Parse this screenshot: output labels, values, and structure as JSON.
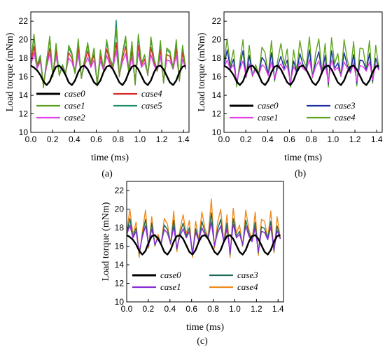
{
  "chart_data": [
    {
      "type": "line",
      "panel_label": "(a)",
      "xlabel": "time (ms)",
      "ylabel": "Load torque (mNm)",
      "xlim": [
        0.0,
        1.45
      ],
      "ylim": [
        10,
        23
      ],
      "xticks": [
        "0.0",
        "0.2",
        "0.4",
        "0.6",
        "0.8",
        "1.0",
        "1.2",
        "1.4"
      ],
      "yticks": [
        "10",
        "12",
        "14",
        "16",
        "18",
        "20",
        "22"
      ],
      "legend": {
        "columns": 2,
        "placement": "bottom"
      },
      "series": [
        {
          "name": "case0",
          "color": "#000000",
          "values": [
            17.2,
            17.0,
            16.7,
            16.2,
            15.5,
            15.1,
            15.5,
            16.4,
            17.1,
            17.2,
            16.8,
            16.2,
            15.4,
            15.1,
            15.6,
            16.5,
            17.1,
            17.2,
            16.8,
            16.1,
            15.4,
            15.1,
            15.6,
            16.5,
            17.1,
            17.2,
            16.8,
            16.1,
            15.4,
            15.1,
            15.6,
            16.5,
            17.1,
            17.2,
            16.8,
            16.1,
            15.4,
            15.1,
            15.6,
            16.5,
            17.1,
            17.2,
            16.8,
            16.1,
            15.4,
            15.1,
            15.6,
            16.5,
            17.1,
            17.2
          ]
        },
        {
          "name": "case1",
          "color": "#59a11b",
          "values": [
            17.5,
            20.6,
            17.2,
            18.2,
            14.8,
            17.6,
            20.4,
            16.0,
            19.6,
            16.1,
            17.2,
            16.3,
            19.4,
            18.6,
            16.3,
            20.1,
            15.8,
            17.8,
            19.7,
            17.4,
            19.1,
            15.0,
            18.9,
            16.8,
            20.0,
            18.0,
            17.1,
            21.2,
            16.0,
            18.6,
            20.4,
            16.5,
            19.8,
            15.1,
            20.6,
            17.4,
            18.4,
            16.1,
            20.3,
            17.8,
            16.6,
            19.9,
            15.3,
            19.1,
            18.8,
            16.9,
            20.0,
            15.5,
            19.4,
            16.8
          ]
        },
        {
          "name": "case2",
          "color": "#e040e8",
          "values": [
            17.2,
            18.6,
            16.9,
            17.6,
            15.3,
            17.1,
            18.5,
            16.2,
            18.2,
            16.3,
            17.0,
            16.4,
            18.0,
            17.6,
            16.4,
            18.4,
            16.0,
            17.2,
            18.1,
            17.0,
            17.8,
            15.4,
            17.7,
            16.7,
            18.3,
            17.3,
            16.9,
            18.8,
            16.2,
            17.6,
            18.5,
            16.5,
            18.1,
            15.5,
            18.6,
            17.0,
            17.5,
            16.3,
            18.4,
            17.2,
            16.6,
            18.2,
            15.6,
            17.8,
            17.7,
            16.8,
            18.3,
            15.8,
            17.9,
            16.8
          ]
        },
        {
          "name": "case4",
          "color": "#d52a2a",
          "values": [
            17.3,
            19.3,
            17.0,
            17.9,
            15.1,
            17.3,
            19.1,
            16.1,
            18.8,
            16.2,
            17.1,
            16.4,
            18.6,
            18.0,
            16.4,
            19.1,
            15.9,
            17.5,
            18.8,
            17.2,
            18.4,
            15.2,
            18.2,
            16.8,
            19.0,
            17.6,
            17.0,
            19.7,
            16.1,
            18.0,
            19.3,
            16.5,
            18.8,
            15.3,
            19.4,
            17.2,
            17.9,
            16.2,
            19.2,
            17.5,
            16.6,
            18.9,
            15.5,
            18.4,
            18.2,
            16.9,
            19.0,
            15.7,
            18.6,
            16.8
          ]
        },
        {
          "name": "case5",
          "color": "#1f8f6e",
          "values": [
            17.6,
            20.2,
            17.3,
            18.3,
            15.0,
            17.8,
            20.0,
            16.1,
            19.4,
            16.2,
            17.3,
            16.4,
            19.1,
            18.4,
            16.4,
            19.8,
            15.9,
            17.9,
            19.4,
            17.5,
            18.9,
            15.2,
            18.7,
            16.9,
            19.7,
            18.0,
            17.2,
            22.1,
            16.1,
            18.5,
            20.1,
            16.6,
            19.6,
            15.2,
            20.3,
            17.5,
            18.3,
            16.2,
            20.0,
            17.9,
            16.7,
            19.6,
            15.4,
            18.9,
            18.6,
            17.0,
            19.7,
            15.6,
            19.2,
            16.9
          ]
        }
      ]
    },
    {
      "type": "line",
      "panel_label": "(b)",
      "xlabel": "time (ms)",
      "ylabel": "Load torque (mNm)",
      "xlim": [
        0.0,
        1.45
      ],
      "ylim": [
        10,
        23
      ],
      "xticks": [
        "0.0",
        "0.2",
        "0.4",
        "0.6",
        "0.8",
        "1.0",
        "1.2",
        "1.4"
      ],
      "yticks": [
        "10",
        "12",
        "14",
        "16",
        "18",
        "20",
        "22"
      ],
      "legend": {
        "columns": 2,
        "placement": "bottom"
      },
      "series": [
        {
          "name": "case0",
          "color": "#000000",
          "values": [
            17.2,
            17.0,
            16.7,
            16.2,
            15.5,
            15.1,
            15.5,
            16.4,
            17.1,
            17.2,
            16.8,
            16.2,
            15.4,
            15.1,
            15.6,
            16.5,
            17.1,
            17.2,
            16.8,
            16.1,
            15.4,
            15.1,
            15.6,
            16.5,
            17.1,
            17.2,
            16.8,
            16.1,
            15.4,
            15.1,
            15.6,
            16.5,
            17.1,
            17.2,
            16.8,
            16.1,
            15.4,
            15.1,
            15.6,
            16.5,
            17.1,
            17.2,
            16.8,
            16.1,
            15.4,
            15.1,
            15.6,
            16.5,
            17.1,
            17.2
          ]
        },
        {
          "name": "case1",
          "color": "#e040e8",
          "values": [
            17.0,
            17.8,
            16.8,
            17.3,
            15.5,
            16.8,
            17.7,
            16.0,
            17.4,
            16.1,
            16.8,
            16.2,
            17.3,
            17.0,
            16.1,
            17.6,
            15.8,
            16.9,
            17.4,
            16.7,
            17.2,
            15.4,
            17.1,
            16.4,
            17.6,
            16.9,
            16.6,
            17.9,
            16.0,
            17.1,
            17.7,
            16.3,
            17.4,
            15.4,
            17.8,
            16.7,
            17.0,
            16.1,
            17.6,
            16.9,
            16.4,
            17.5,
            15.5,
            17.2,
            17.1,
            16.6,
            17.6,
            15.7,
            17.3,
            16.7
          ]
        },
        {
          "name": "case3",
          "color": "#1c2fa0",
          "values": [
            17.1,
            18.9,
            16.9,
            17.9,
            15.3,
            17.0,
            18.8,
            16.0,
            18.3,
            16.1,
            16.9,
            16.2,
            18.1,
            17.6,
            16.2,
            18.6,
            15.7,
            17.2,
            18.2,
            16.9,
            17.8,
            15.2,
            17.7,
            16.5,
            18.5,
            17.3,
            16.8,
            18.9,
            16.0,
            17.6,
            18.7,
            16.3,
            18.3,
            15.2,
            18.8,
            16.9,
            17.5,
            16.1,
            18.6,
            17.2,
            16.5,
            18.4,
            15.3,
            17.8,
            17.7,
            16.7,
            18.5,
            15.5,
            18.0,
            16.8
          ]
        },
        {
          "name": "case4",
          "color": "#5fa51f",
          "values": [
            17.5,
            20.1,
            17.2,
            18.9,
            14.9,
            17.6,
            20.0,
            15.9,
            19.4,
            16.0,
            17.3,
            16.3,
            19.2,
            18.6,
            16.2,
            19.9,
            15.5,
            17.8,
            19.6,
            17.3,
            19.0,
            14.9,
            18.9,
            16.7,
            19.9,
            17.9,
            17.1,
            20.3,
            15.9,
            18.6,
            20.1,
            16.4,
            19.6,
            14.9,
            20.2,
            17.4,
            18.5,
            16.0,
            20.0,
            17.8,
            16.6,
            19.8,
            15.0,
            19.1,
            19.0,
            16.8,
            19.9,
            15.3,
            19.4,
            16.9
          ]
        }
      ]
    },
    {
      "type": "line",
      "panel_label": "(c)",
      "xlabel": "time (ms)",
      "ylabel": "Load torque (mNm)",
      "xlim": [
        0.0,
        1.45
      ],
      "ylim": [
        10,
        23
      ],
      "xticks": [
        "0.0",
        "0.2",
        "0.4",
        "0.6",
        "0.8",
        "1.0",
        "1.2",
        "1.4"
      ],
      "yticks": [
        "10",
        "12",
        "14",
        "16",
        "18",
        "20",
        "22"
      ],
      "legend": {
        "columns": 2,
        "placement": "bottom"
      },
      "series": [
        {
          "name": "case0",
          "color": "#000000",
          "values": [
            17.2,
            17.0,
            16.7,
            16.2,
            15.5,
            15.1,
            15.5,
            16.4,
            17.1,
            17.2,
            16.8,
            16.2,
            15.4,
            15.1,
            15.6,
            16.5,
            17.1,
            17.2,
            16.8,
            16.1,
            15.4,
            15.1,
            15.6,
            16.5,
            17.1,
            17.2,
            16.8,
            16.1,
            15.4,
            15.1,
            15.6,
            16.5,
            17.1,
            17.2,
            16.8,
            16.1,
            15.4,
            15.1,
            15.6,
            16.5,
            17.1,
            17.2,
            16.8,
            16.1,
            15.4,
            15.1,
            15.6,
            16.5,
            17.1,
            17.2
          ]
        },
        {
          "name": "case1",
          "color": "#8a2bd6",
          "values": [
            17.2,
            18.3,
            16.9,
            17.6,
            15.4,
            17.0,
            18.2,
            16.1,
            17.9,
            16.2,
            16.9,
            16.3,
            17.8,
            17.4,
            16.3,
            18.1,
            15.8,
            17.1,
            17.9,
            16.9,
            17.6,
            15.3,
            17.5,
            16.6,
            18.0,
            17.2,
            16.8,
            18.6,
            16.1,
            17.4,
            18.2,
            16.4,
            17.9,
            15.3,
            18.4,
            16.9,
            17.3,
            16.2,
            18.2,
            17.1,
            16.5,
            18.0,
            15.4,
            17.6,
            17.5,
            16.7,
            18.1,
            15.6,
            17.7,
            16.8
          ]
        },
        {
          "name": "case3",
          "color": "#1a6b5a",
          "values": [
            17.3,
            19.0,
            17.0,
            18.0,
            15.2,
            17.2,
            18.9,
            16.0,
            18.5,
            16.1,
            17.0,
            16.3,
            18.3,
            17.8,
            16.3,
            18.8,
            15.7,
            17.4,
            18.5,
            17.1,
            18.0,
            15.1,
            17.9,
            16.6,
            18.7,
            17.5,
            16.9,
            19.6,
            16.0,
            17.8,
            18.9,
            16.4,
            18.5,
            15.1,
            19.0,
            17.1,
            17.6,
            16.1,
            18.8,
            17.4,
            16.5,
            18.6,
            15.3,
            18.1,
            17.9,
            16.8,
            18.7,
            15.5,
            18.2,
            16.8
          ]
        },
        {
          "name": "case4",
          "color": "#f08a1d",
          "values": [
            17.5,
            20.0,
            17.2,
            18.6,
            14.8,
            17.6,
            19.9,
            15.8,
            19.2,
            16.0,
            17.3,
            16.2,
            19.0,
            18.4,
            16.2,
            19.8,
            15.4,
            17.8,
            19.4,
            17.3,
            18.8,
            14.8,
            18.7,
            16.7,
            19.7,
            17.9,
            17.0,
            21.1,
            15.8,
            18.5,
            20.0,
            16.4,
            19.4,
            14.8,
            20.1,
            17.4,
            18.3,
            16.0,
            19.9,
            17.8,
            16.6,
            19.7,
            15.0,
            18.9,
            18.7,
            16.8,
            19.8,
            15.3,
            19.2,
            16.9
          ]
        }
      ]
    }
  ]
}
